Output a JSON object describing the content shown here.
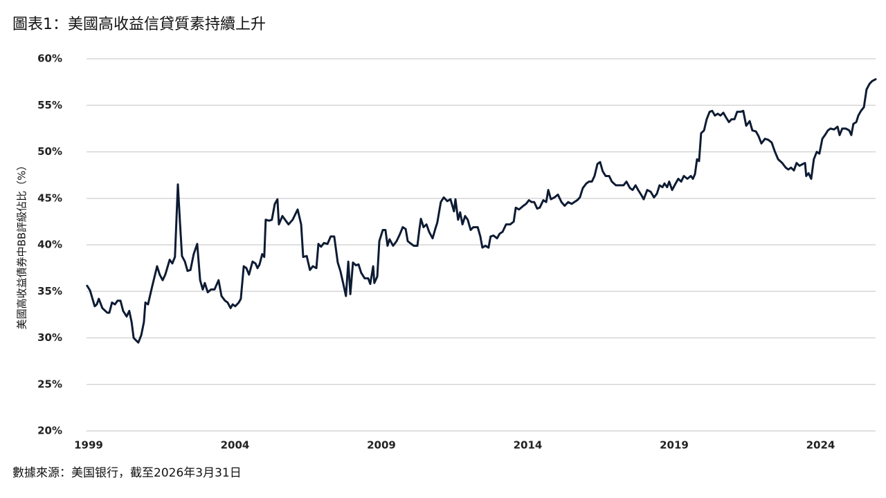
{
  "chart_data": {
    "type": "line",
    "title": "圖表1：美國高收益信貸質素持續上升",
    "y_label": "美國高收益債券中BB評級佔比（%）",
    "source": "數據來源：美国银行，截至2026年3月31日",
    "color": "#0d1b33",
    "grid": true,
    "xlim": [
      1998.93,
      2025.88
    ],
    "xticks": [
      1999,
      2004,
      2009,
      2014,
      2019,
      2024
    ],
    "ylim": [
      20,
      60
    ],
    "yticks": [
      {
        "value": 20,
        "label": "20%"
      },
      {
        "value": 25,
        "label": "25%"
      },
      {
        "value": 30,
        "label": "30%"
      },
      {
        "value": 35,
        "label": "35%"
      },
      {
        "value": 40,
        "label": "40%"
      },
      {
        "value": 45,
        "label": "45%"
      },
      {
        "value": 50,
        "label": "50%"
      },
      {
        "value": 55,
        "label": "55%"
      },
      {
        "value": 60,
        "label": "60%"
      }
    ],
    "x": [
      1998.95,
      1999.05,
      1999.21,
      1999.28,
      1999.35,
      1999.47,
      1999.64,
      1999.71,
      1999.8,
      1999.9,
      1999.99,
      2000.09,
      2000.18,
      2000.3,
      2000.39,
      2000.47,
      2000.54,
      2000.63,
      2000.7,
      2000.8,
      2000.89,
      2000.94,
      2001.03,
      2001.17,
      2001.34,
      2001.43,
      2001.53,
      2001.62,
      2001.77,
      2001.86,
      2001.95,
      2002.05,
      2002.12,
      2002.19,
      2002.29,
      2002.38,
      2002.48,
      2002.59,
      2002.71,
      2002.81,
      2002.9,
      2002.97,
      2003.07,
      2003.18,
      2003.3,
      2003.37,
      2003.44,
      2003.54,
      2003.66,
      2003.75,
      2003.85,
      2003.92,
      2004.01,
      2004.13,
      2004.2,
      2004.3,
      2004.39,
      2004.48,
      2004.6,
      2004.7,
      2004.77,
      2004.84,
      2004.93,
      2005.0,
      2005.05,
      2005.17,
      2005.26,
      2005.36,
      2005.45,
      2005.5,
      2005.62,
      2005.71,
      2005.83,
      2005.97,
      2006.14,
      2006.26,
      2006.33,
      2006.45,
      2006.56,
      2006.66,
      2006.78,
      2006.85,
      2006.94,
      2007.04,
      2007.16,
      2007.27,
      2007.39,
      2007.51,
      2007.6,
      2007.7,
      2007.79,
      2007.87,
      2007.94,
      2008.03,
      2008.13,
      2008.22,
      2008.31,
      2008.43,
      2008.55,
      2008.62,
      2008.72,
      2008.76,
      2008.86,
      2008.93,
      2009.05,
      2009.14,
      2009.21,
      2009.28,
      2009.4,
      2009.52,
      2009.64,
      2009.73,
      2009.83,
      2009.9,
      2010.02,
      2010.11,
      2010.23,
      2010.3,
      2010.35,
      2010.44,
      2010.54,
      2010.63,
      2010.75,
      2010.84,
      2010.91,
      2011.03,
      2011.13,
      2011.25,
      2011.36,
      2011.48,
      2011.53,
      2011.62,
      2011.69,
      2011.77,
      2011.86,
      2011.95,
      2012.05,
      2012.14,
      2012.29,
      2012.38,
      2012.45,
      2012.55,
      2012.66,
      2012.73,
      2012.83,
      2012.95,
      2013.04,
      2013.14,
      2013.26,
      2013.4,
      2013.52,
      2013.59,
      2013.7,
      2013.85,
      2013.94,
      2014.04,
      2014.13,
      2014.22,
      2014.32,
      2014.41,
      2014.53,
      2014.63,
      2014.7,
      2014.79,
      2014.91,
      2015.03,
      2015.15,
      2015.26,
      2015.38,
      2015.5,
      2015.59,
      2015.69,
      2015.78,
      2015.88,
      2016.0,
      2016.09,
      2016.19,
      2016.28,
      2016.38,
      2016.47,
      2016.56,
      2016.66,
      2016.78,
      2016.87,
      2017.01,
      2017.16,
      2017.27,
      2017.37,
      2017.49,
      2017.58,
      2017.68,
      2017.77,
      2017.87,
      2017.96,
      2018.08,
      2018.2,
      2018.31,
      2018.41,
      2018.5,
      2018.6,
      2018.67,
      2018.76,
      2018.83,
      2018.93,
      2019.05,
      2019.14,
      2019.24,
      2019.33,
      2019.45,
      2019.57,
      2019.64,
      2019.71,
      2019.78,
      2019.85,
      2019.92,
      2020.02,
      2020.11,
      2020.21,
      2020.3,
      2020.39,
      2020.49,
      2020.58,
      2020.68,
      2020.77,
      2020.87,
      2020.96,
      2021.06,
      2021.15,
      2021.27,
      2021.36,
      2021.46,
      2021.58,
      2021.67,
      2021.79,
      2021.88,
      2021.98,
      2022.1,
      2022.21,
      2022.33,
      2022.43,
      2022.55,
      2022.69,
      2022.81,
      2022.9,
      2022.99,
      2023.09,
      2023.18,
      2023.28,
      2023.4,
      2023.47,
      2023.51,
      2023.59,
      2023.68,
      2023.77,
      2023.87,
      2023.96,
      2024.06,
      2024.15,
      2024.25,
      2024.34,
      2024.46,
      2024.58,
      2024.65,
      2024.74,
      2024.86,
      2024.98,
      2025.05,
      2025.12,
      2025.22,
      2025.29,
      2025.38,
      2025.48,
      2025.57,
      2025.67,
      2025.76,
      2025.88
    ],
    "values": [
      35.6,
      35.1,
      33.4,
      33.6,
      34.2,
      33.2,
      32.7,
      32.7,
      33.8,
      33.6,
      34.0,
      34.0,
      32.9,
      32.3,
      32.9,
      31.7,
      30.0,
      29.7,
      29.5,
      30.3,
      31.7,
      33.8,
      33.6,
      35.5,
      37.7,
      36.8,
      36.2,
      36.8,
      38.4,
      38.0,
      38.7,
      46.5,
      42.5,
      38.8,
      38.2,
      37.2,
      37.3,
      39.0,
      40.1,
      36.2,
      35.2,
      35.9,
      34.9,
      35.2,
      35.2,
      35.7,
      36.2,
      34.5,
      34.0,
      33.8,
      33.2,
      33.6,
      33.4,
      33.8,
      34.2,
      37.7,
      37.5,
      36.8,
      38.2,
      38.0,
      37.5,
      37.9,
      39.0,
      38.7,
      42.7,
      42.6,
      42.7,
      44.4,
      44.9,
      42.2,
      43.1,
      42.7,
      42.2,
      42.7,
      43.8,
      42.2,
      38.7,
      38.8,
      37.3,
      37.7,
      37.5,
      40.1,
      39.8,
      40.2,
      40.1,
      40.9,
      40.9,
      38.1,
      37.2,
      35.8,
      34.5,
      38.2,
      34.7,
      38.1,
      37.8,
      37.9,
      37.0,
      36.4,
      36.4,
      35.8,
      37.7,
      35.9,
      36.6,
      40.4,
      41.6,
      41.6,
      39.9,
      40.6,
      39.9,
      40.4,
      41.2,
      41.9,
      41.7,
      40.4,
      40.1,
      39.9,
      39.9,
      41.7,
      42.8,
      41.9,
      42.2,
      41.4,
      40.7,
      41.7,
      42.4,
      44.6,
      45.1,
      44.7,
      44.9,
      43.6,
      44.9,
      42.7,
      43.5,
      42.2,
      43.1,
      42.7,
      41.6,
      41.9,
      41.9,
      40.9,
      39.7,
      39.9,
      39.7,
      40.9,
      41.0,
      40.7,
      41.2,
      41.4,
      42.2,
      42.2,
      42.5,
      44.0,
      43.8,
      44.2,
      44.4,
      44.8,
      44.6,
      44.6,
      43.9,
      44.0,
      44.8,
      44.6,
      45.9,
      44.9,
      45.1,
      45.4,
      44.6,
      44.2,
      44.6,
      44.4,
      44.6,
      44.8,
      45.1,
      46.1,
      46.6,
      46.8,
      46.8,
      47.4,
      48.7,
      48.9,
      47.9,
      47.4,
      47.4,
      46.8,
      46.4,
      46.4,
      46.4,
      46.8,
      46.1,
      45.9,
      46.4,
      45.9,
      45.4,
      44.9,
      45.9,
      45.7,
      45.1,
      45.5,
      46.4,
      46.2,
      46.6,
      46.2,
      46.8,
      45.9,
      46.6,
      47.1,
      46.8,
      47.4,
      47.1,
      47.4,
      47.1,
      47.6,
      49.2,
      49.0,
      52.0,
      52.3,
      53.5,
      54.3,
      54.4,
      53.9,
      54.1,
      53.9,
      54.2,
      53.7,
      53.2,
      53.5,
      53.5,
      54.3,
      54.3,
      54.4,
      52.8,
      53.3,
      52.3,
      52.2,
      51.7,
      50.9,
      51.4,
      51.3,
      51.0,
      50.1,
      49.2,
      48.8,
      48.3,
      48.1,
      48.3,
      48.0,
      48.8,
      48.5,
      48.7,
      48.8,
      47.4,
      47.7,
      47.1,
      49.2,
      50.0,
      49.8,
      51.4,
      51.8,
      52.3,
      52.5,
      52.4,
      52.7,
      51.8,
      52.5,
      52.5,
      52.3,
      51.8,
      53.0,
      53.2,
      53.9,
      54.4,
      54.8,
      56.7,
      57.3,
      57.6,
      57.8
    ]
  }
}
